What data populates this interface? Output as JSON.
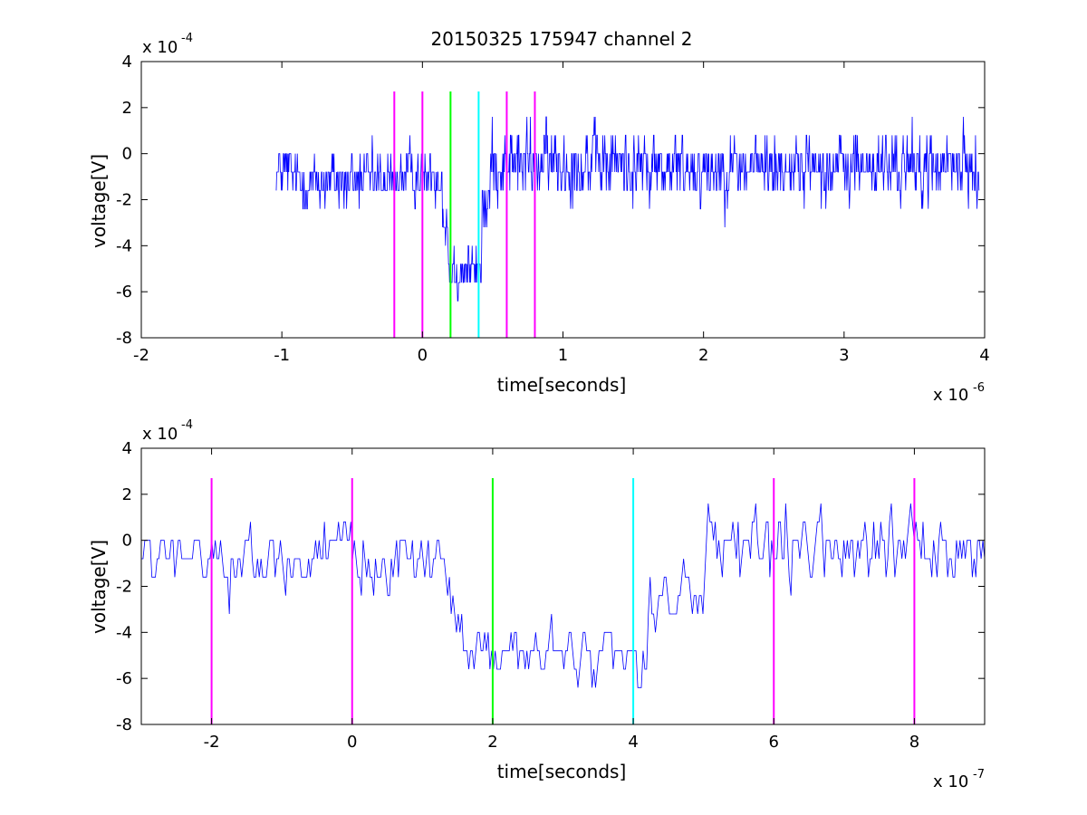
{
  "chart_data": [
    {
      "type": "line",
      "title": "20150325 175947 channel 2",
      "xlabel": "time[seconds]",
      "ylabel": "voltage[V]",
      "x_exponent_label": "x 10",
      "x_exponent_power": "-6",
      "y_exponent_label": "x 10",
      "y_exponent_power": "-4",
      "xlim": [
        -2,
        4
      ],
      "ylim": [
        -8,
        4
      ],
      "xticks": [
        -2,
        -1,
        0,
        1,
        2,
        3,
        4
      ],
      "yticks": [
        -8,
        -6,
        -4,
        -2,
        0,
        2,
        4
      ],
      "grid": false,
      "series": [
        {
          "color": "#0000ff",
          "x_range": [
            -1.04,
            3.96
          ],
          "segments": [
            {
              "x_end": -0.9,
              "level": -0.8,
              "noise": 0.9
            },
            {
              "x_end": -0.2,
              "level": -1.2,
              "noise": 1.0
            },
            {
              "x_end": 0.14,
              "level": -0.9,
              "noise": 0.9
            },
            {
              "x_end": 0.18,
              "level": -2.8,
              "noise": 1.2
            },
            {
              "x_end": 0.42,
              "level": -5.0,
              "noise": 0.8
            },
            {
              "x_end": 0.48,
              "level": -2.2,
              "noise": 1.0
            },
            {
              "x_end": 1.5,
              "level": -0.4,
              "noise": 1.2
            },
            {
              "x_end": 3.96,
              "level": -0.6,
              "noise": 1.1
            }
          ]
        }
      ],
      "vertical_markers": [
        {
          "x": -0.2,
          "color": "#ff00ff"
        },
        {
          "x": 0.0,
          "color": "#ff00ff"
        },
        {
          "x": 0.2,
          "color": "#00ff00"
        },
        {
          "x": 0.4,
          "color": "#00ffff"
        },
        {
          "x": 0.6,
          "color": "#ff00ff"
        },
        {
          "x": 0.8,
          "color": "#ff00ff"
        }
      ],
      "marker_ylim": [
        -8,
        2.7
      ]
    },
    {
      "type": "line",
      "title": "",
      "xlabel": "time[seconds]",
      "ylabel": "voltage[V]",
      "x_exponent_label": "x 10",
      "x_exponent_power": "-7",
      "y_exponent_label": "x 10",
      "y_exponent_power": "-4",
      "xlim": [
        -3,
        9
      ],
      "ylim": [
        -8,
        4
      ],
      "xticks": [
        -2,
        0,
        2,
        4,
        6,
        8
      ],
      "yticks": [
        -8,
        -6,
        -4,
        -2,
        0,
        2,
        4
      ],
      "grid": false,
      "series": [
        {
          "color": "#0000ff",
          "x_range": [
            -3,
            9
          ],
          "segments": [
            {
              "x_end": 1.4,
              "level": -0.8,
              "noise": 1.0
            },
            {
              "x_end": 2.0,
              "level": -4.4,
              "noise": 1.1
            },
            {
              "x_end": 4.2,
              "level": -5.0,
              "noise": 0.9
            },
            {
              "x_end": 5.0,
              "level": -2.5,
              "noise": 1.0
            },
            {
              "x_end": 9.0,
              "level": -0.5,
              "noise": 1.2
            }
          ]
        }
      ],
      "vertical_markers": [
        {
          "x": -2,
          "color": "#ff00ff"
        },
        {
          "x": 0,
          "color": "#ff00ff"
        },
        {
          "x": 2,
          "color": "#00ff00"
        },
        {
          "x": 4,
          "color": "#00ffff"
        },
        {
          "x": 6,
          "color": "#ff00ff"
        },
        {
          "x": 8,
          "color": "#ff00ff"
        }
      ],
      "marker_ylim": [
        -8,
        2.7
      ]
    }
  ]
}
